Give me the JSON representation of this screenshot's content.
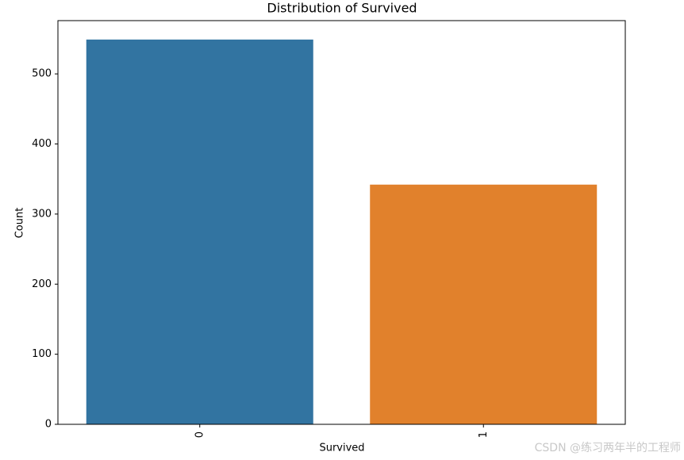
{
  "chart_data": {
    "type": "bar",
    "title": "Distribution of Survived",
    "x_label": "Survived",
    "y_label": "Count",
    "categories": [
      "0",
      "1"
    ],
    "values": [
      549,
      342
    ],
    "colors": [
      "#3274a1",
      "#e1812c"
    ],
    "ylim": [
      0,
      576
    ],
    "yticks": [
      0,
      100,
      200,
      300,
      400,
      500
    ],
    "watermark": "CSDN @练习两年半的工程师"
  }
}
